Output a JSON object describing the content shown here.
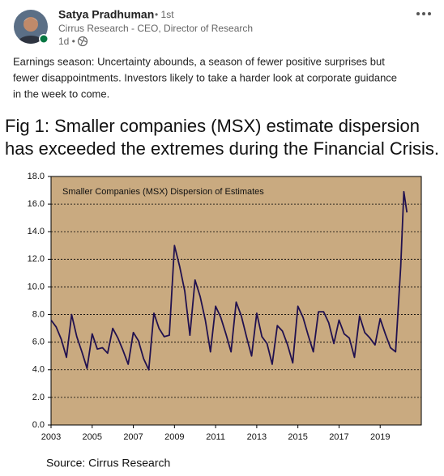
{
  "post": {
    "author": "Satya Pradhuman",
    "degree": "• 1st",
    "headline": "Cirrus Research - CEO, Director of Research",
    "time": "1d •",
    "text_lines": [
      "Earnings season: Uncertainty abounds, a season of fewer positive surprises but",
      "fewer disappointments. Investors likely to take a harder look at corporate guidance",
      "in the week to come."
    ],
    "caption_lines": [
      "Fig 1: Smaller companies (MSX) estimate dispersion",
      "has exceeded the extremes during the Financial Crisis."
    ],
    "source": "Source: Cirrus Research"
  },
  "chart_data": {
    "type": "line",
    "title": "Smaller Companies (MSX) Dispersion of Estimates",
    "color": "#21114f",
    "background": "#c9aa80",
    "grid": true,
    "x": [
      2003,
      2003.25,
      2003.5,
      2003.75,
      2004,
      2004.25,
      2004.5,
      2004.75,
      2005,
      2005.25,
      2005.5,
      2005.75,
      2006,
      2006.25,
      2006.5,
      2006.75,
      2007,
      2007.25,
      2007.5,
      2007.75,
      2008,
      2008.25,
      2008.5,
      2008.75,
      2009,
      2009.25,
      2009.5,
      2009.75,
      2010,
      2010.25,
      2010.5,
      2010.75,
      2011,
      2011.25,
      2011.5,
      2011.75,
      2012,
      2012.25,
      2012.5,
      2012.75,
      2013,
      2013.25,
      2013.5,
      2013.75,
      2014,
      2014.25,
      2014.5,
      2014.75,
      2015,
      2015.25,
      2015.5,
      2015.75,
      2016,
      2016.25,
      2016.5,
      2016.75,
      2017,
      2017.25,
      2017.5,
      2017.75,
      2018,
      2018.25,
      2018.5,
      2018.75,
      2019,
      2019.25,
      2019.5,
      2019.75,
      2020,
      2020.15,
      2020.3
    ],
    "values": [
      7.6,
      7.1,
      6.2,
      4.9,
      8.0,
      6.4,
      5.3,
      4.1,
      6.6,
      5.5,
      5.6,
      5.2,
      7.0,
      6.3,
      5.4,
      4.4,
      6.7,
      6.1,
      4.8,
      4.0,
      8.1,
      7.0,
      6.4,
      6.5,
      13.0,
      11.5,
      9.7,
      6.5,
      10.5,
      9.3,
      7.6,
      5.3,
      8.6,
      7.8,
      6.6,
      5.3,
      8.9,
      7.9,
      6.4,
      5.0,
      8.1,
      6.4,
      5.9,
      4.4,
      7.2,
      6.8,
      5.8,
      4.5,
      8.6,
      7.8,
      6.5,
      5.3,
      8.2,
      8.2,
      7.4,
      5.9,
      7.6,
      6.6,
      6.3,
      4.9,
      7.9,
      6.7,
      6.3,
      5.8,
      7.7,
      6.6,
      5.6,
      5.3,
      11.5,
      16.9,
      15.4
    ],
    "xlim": [
      2003,
      2021
    ],
    "xticks": [
      2003,
      2005,
      2007,
      2009,
      2011,
      2013,
      2015,
      2017,
      2019
    ],
    "ylim": [
      0,
      18
    ],
    "yticks": [
      {
        "value": 0,
        "label": "0.0"
      },
      {
        "value": 2,
        "label": "2.0"
      },
      {
        "value": 4,
        "label": "4.0"
      },
      {
        "value": 6,
        "label": "6.0"
      },
      {
        "value": 8,
        "label": "8.0"
      },
      {
        "value": 10,
        "label": "10.0"
      },
      {
        "value": 12,
        "label": "12.0"
      },
      {
        "value": 14,
        "label": "14.0"
      },
      {
        "value": 16,
        "label": "16.0"
      },
      {
        "value": 18,
        "label": "18.0"
      }
    ]
  }
}
